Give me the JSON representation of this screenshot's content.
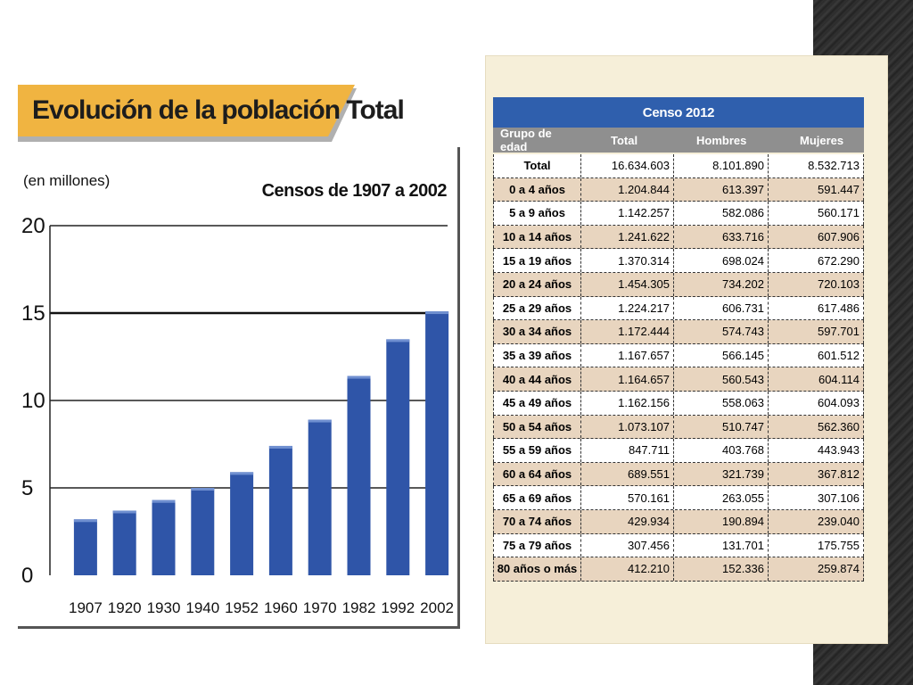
{
  "chart_data": {
    "type": "bar",
    "title": "Evolución de la población Total",
    "subtitle": "Censos de 1907 a 2002",
    "ylabel": "(en millones)",
    "xlabel": "",
    "categories": [
      "1907",
      "1920",
      "1930",
      "1940",
      "1952",
      "1960",
      "1970",
      "1982",
      "1992",
      "2002"
    ],
    "values": [
      3.2,
      3.7,
      4.3,
      5.0,
      5.9,
      7.4,
      8.9,
      11.4,
      13.5,
      15.1
    ],
    "ylim": [
      0,
      20
    ],
    "yticks": [
      0,
      5,
      10,
      15,
      20
    ],
    "grid": true,
    "bar_color": "#2f55a8",
    "title_band_color": "#f0b441"
  },
  "table": {
    "title": "Censo 2012",
    "columns": [
      "Grupo de edad",
      "Total",
      "Hombres",
      "Mujeres"
    ],
    "header_color": "#2f5fad",
    "subheader_color": "#8f8f8f",
    "rows": [
      [
        "Total",
        "16.634.603",
        "8.101.890",
        "8.532.713"
      ],
      [
        "0 a 4 años",
        "1.204.844",
        "613.397",
        "591.447"
      ],
      [
        "5 a 9 años",
        "1.142.257",
        "582.086",
        "560.171"
      ],
      [
        "10 a 14 años",
        "1.241.622",
        "633.716",
        "607.906"
      ],
      [
        "15 a 19 años",
        "1.370.314",
        "698.024",
        "672.290"
      ],
      [
        "20 a 24 años",
        "1.454.305",
        "734.202",
        "720.103"
      ],
      [
        "25 a 29 años",
        "1.224.217",
        "606.731",
        "617.486"
      ],
      [
        "30 a 34 años",
        "1.172.444",
        "574.743",
        "597.701"
      ],
      [
        "35 a 39 años",
        "1.167.657",
        "566.145",
        "601.512"
      ],
      [
        "40 a 44 años",
        "1.164.657",
        "560.543",
        "604.114"
      ],
      [
        "45 a 49 años",
        "1.162.156",
        "558.063",
        "604.093"
      ],
      [
        "50 a 54 años",
        "1.073.107",
        "510.747",
        "562.360"
      ],
      [
        "55 a 59 años",
        "847.711",
        "403.768",
        "443.943"
      ],
      [
        "60 a 64 años",
        "689.551",
        "321.739",
        "367.812"
      ],
      [
        "65 a 69 años",
        "570.161",
        "263.055",
        "307.106"
      ],
      [
        "70 a 74 años",
        "429.934",
        "190.894",
        "239.040"
      ],
      [
        "75 a 79 años",
        "307.456",
        "131.701",
        "175.755"
      ],
      [
        "80 años o más",
        "412.210",
        "152.336",
        "259.874"
      ]
    ]
  }
}
